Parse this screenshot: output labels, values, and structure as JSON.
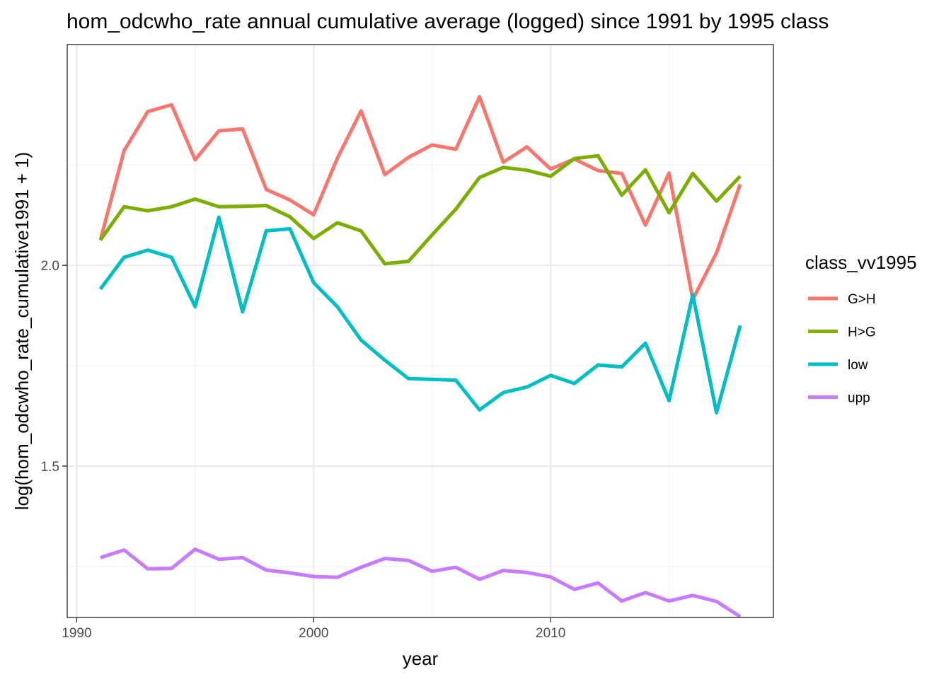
{
  "chart_data": {
    "type": "line",
    "title": "hom_odcwho_rate annual cumulative average (logged) since 1991 by 1995 class",
    "xlabel": "year",
    "ylabel": "log(hom_odcwho_rate_cumulative1991 + 1)",
    "xlim": [
      1989.6,
      2019.4
    ],
    "ylim": [
      1.123,
      2.55
    ],
    "x_ticks": [
      1990,
      2000,
      2010
    ],
    "y_ticks": [
      1.5,
      2.0
    ],
    "x_tick_labels": [
      "1990",
      "2000",
      "2010"
    ],
    "y_tick_labels": [
      "1.5",
      "2.0"
    ],
    "grid": true,
    "legend_position": "right",
    "legend_title": "class_vv1995",
    "x": [
      1991,
      1992,
      1993,
      1994,
      1995,
      1996,
      1997,
      1998,
      1999,
      2000,
      2001,
      2002,
      2003,
      2004,
      2005,
      2006,
      2007,
      2008,
      2009,
      2010,
      2011,
      2012,
      2013,
      2014,
      2015,
      2016,
      2017,
      2018
    ],
    "series": [
      {
        "name": "G>H",
        "color": "#F8766D",
        "values": [
          2.063,
          2.286,
          2.383,
          2.4,
          2.263,
          2.335,
          2.34,
          2.189,
          2.163,
          2.126,
          2.267,
          2.385,
          2.226,
          2.269,
          2.3,
          2.289,
          2.42,
          2.257,
          2.295,
          2.24,
          2.265,
          2.236,
          2.229,
          2.1,
          2.23,
          1.915,
          2.031,
          2.202
        ]
      },
      {
        "name": "H>G",
        "color": "#7CAE00",
        "values": [
          2.063,
          2.146,
          2.136,
          2.146,
          2.165,
          2.146,
          2.147,
          2.149,
          2.121,
          2.067,
          2.106,
          2.086,
          2.004,
          2.01,
          2.076,
          2.14,
          2.219,
          2.244,
          2.237,
          2.222,
          2.266,
          2.273,
          2.175,
          2.238,
          2.131,
          2.229,
          2.16,
          2.222
        ]
      },
      {
        "name": "low",
        "color": "#00BFC4",
        "values": [
          1.941,
          2.02,
          2.038,
          2.02,
          1.897,
          2.12,
          1.884,
          2.086,
          2.091,
          1.957,
          1.897,
          1.814,
          1.764,
          1.718,
          1.716,
          1.714,
          1.64,
          1.683,
          1.697,
          1.726,
          1.706,
          1.752,
          1.747,
          1.806,
          1.663,
          1.927,
          1.633,
          1.85
        ]
      },
      {
        "name": "upp",
        "color": "#C77CFF",
        "values": [
          1.272,
          1.291,
          1.244,
          1.245,
          1.293,
          1.268,
          1.272,
          1.241,
          1.234,
          1.225,
          1.223,
          1.248,
          1.27,
          1.265,
          1.238,
          1.248,
          1.218,
          1.24,
          1.235,
          1.224,
          1.193,
          1.209,
          1.164,
          1.185,
          1.164,
          1.178,
          1.163,
          1.125
        ]
      }
    ]
  }
}
